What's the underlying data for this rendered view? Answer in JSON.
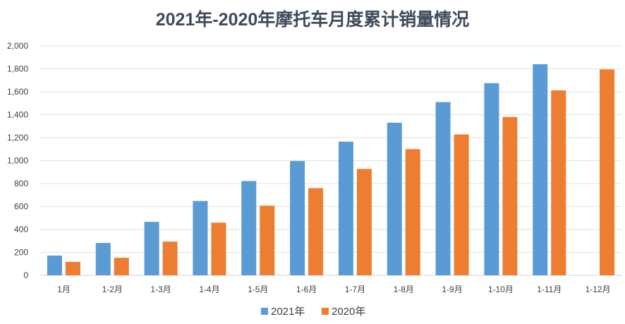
{
  "chart_data": {
    "type": "bar",
    "title": "2021年-2020年摩托车月度累计销量情况",
    "xlabel": "",
    "ylabel": "",
    "categories": [
      "1月",
      "1-2月",
      "1-3月",
      "1-4月",
      "1-5月",
      "1-6月",
      "1-7月",
      "1-8月",
      "1-9月",
      "1-10月",
      "1-11月",
      "1-12月"
    ],
    "series": [
      {
        "name": "2021年",
        "color": "#5b9bd5",
        "values": [
          172,
          282,
          466,
          648,
          822,
          996,
          1165,
          1330,
          1510,
          1675,
          1840,
          null
        ]
      },
      {
        "name": "2020年",
        "color": "#ed7d31",
        "values": [
          117,
          153,
          294,
          459,
          607,
          760,
          927,
          1100,
          1228,
          1380,
          1612,
          1795
        ]
      }
    ],
    "ylim": [
      0,
      2000
    ],
    "yticks": [
      0,
      200,
      400,
      600,
      800,
      1000,
      1200,
      1400,
      1600,
      1800,
      2000
    ],
    "ytick_labels": [
      "0",
      "200",
      "400",
      "600",
      "800",
      "1,000",
      "1,200",
      "1,400",
      "1,600",
      "1,800",
      "2,000"
    ],
    "grid": true,
    "legend_position": "bottom"
  }
}
